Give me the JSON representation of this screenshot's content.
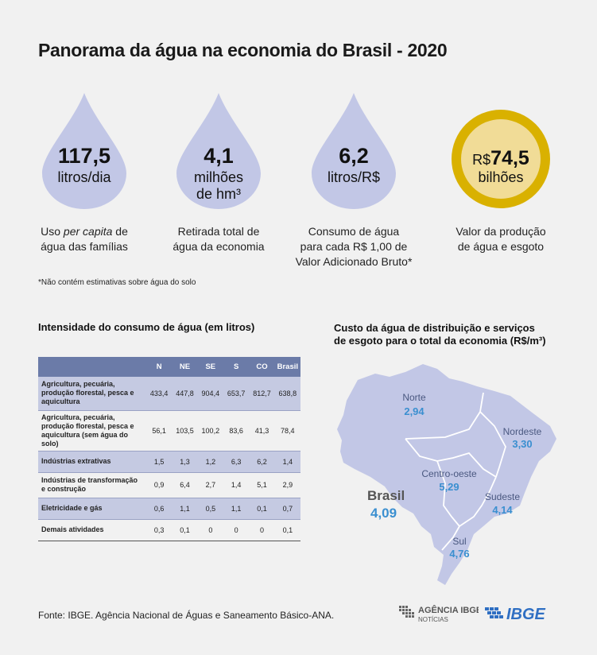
{
  "title": "Panorama da água na economia do Brasil - 2020",
  "stats": [
    {
      "value": "117,5",
      "unit": "litros/dia",
      "desc_a": "Uso ",
      "desc_em": "per capita",
      "desc_b": " de",
      "desc_c": "água das famílias"
    },
    {
      "value": "4,1",
      "unit_1": "milhões",
      "unit_2": "de hm³",
      "desc_1": "Retirada total de",
      "desc_2": "água da economia"
    },
    {
      "value": "6,2",
      "unit": "litros/R$",
      "desc_1": "Consumo de água",
      "desc_2": "para cada R$ 1,00 de",
      "desc_3": "Valor Adicionado Bruto*"
    },
    {
      "prefix": "R$",
      "value": "74,5",
      "unit": "bilhões",
      "desc_1": "Valor da produção",
      "desc_2": "de água e esgoto"
    }
  ],
  "note": "*Não contém estimativas sobre água do solo",
  "table": {
    "title": "Intensidade do consumo de água (em litros)",
    "headers": [
      "",
      "N",
      "NE",
      "SE",
      "S",
      "CO",
      "Brasil"
    ],
    "rows": [
      {
        "label": "Agricultura, pecuária, produção florestal, pesca e aquicultura",
        "values": [
          "433,4",
          "447,8",
          "904,4",
          "653,7",
          "812,7",
          "638,8"
        ]
      },
      {
        "label": "Agricultura, pecuária, produção florestal, pesca e aquicultura (sem água do solo)",
        "values": [
          "56,1",
          "103,5",
          "100,2",
          "83,6",
          "41,3",
          "78,4"
        ]
      },
      {
        "label": "Indústrias extrativas",
        "values": [
          "1,5",
          "1,3",
          "1,2",
          "6,3",
          "6,2",
          "1,4"
        ]
      },
      {
        "label": "Indústrias de transformação e construção",
        "values": [
          "0,9",
          "6,4",
          "2,7",
          "1,4",
          "5,1",
          "2,9"
        ]
      },
      {
        "label": "Eletricidade e gás",
        "values": [
          "0,6",
          "1,1",
          "0,5",
          "1,1",
          "0,1",
          "0,7"
        ]
      },
      {
        "label": "Demais atividades",
        "values": [
          "0,3",
          "0,1",
          "0",
          "0",
          "0",
          "0,1"
        ]
      }
    ]
  },
  "map": {
    "title_1": "Custo da água de distribuição e serviços",
    "title_2": "de esgoto para o total da economia (R$/m³)",
    "regions": [
      {
        "name": "Norte",
        "value": "2,94"
      },
      {
        "name": "Nordeste",
        "value": "3,30"
      },
      {
        "name": "Centro-oeste",
        "value": "5,29"
      },
      {
        "name": "Sudeste",
        "value": "4,14"
      },
      {
        "name": "Sul",
        "value": "4,76"
      }
    ],
    "brasil_label": "Brasil",
    "brasil_value": "4,09"
  },
  "source": "Fonte: IBGE. Agência Nacional de Águas e Saneamento Básico-ANA.",
  "logos": {
    "agencia_1": "AGÊNCIA IBGE",
    "agencia_2": "NOTÍCIAS",
    "ibge": "IBGE"
  },
  "colors": {
    "drop": "#c2c7e6",
    "gold_ring": "#d9b100",
    "gold_fill": "#f1dc97",
    "table_header": "#6b7ba8",
    "table_shade": "#c5cae2",
    "map": "#c2c7e6",
    "value_blue": "#3a8fd0"
  }
}
